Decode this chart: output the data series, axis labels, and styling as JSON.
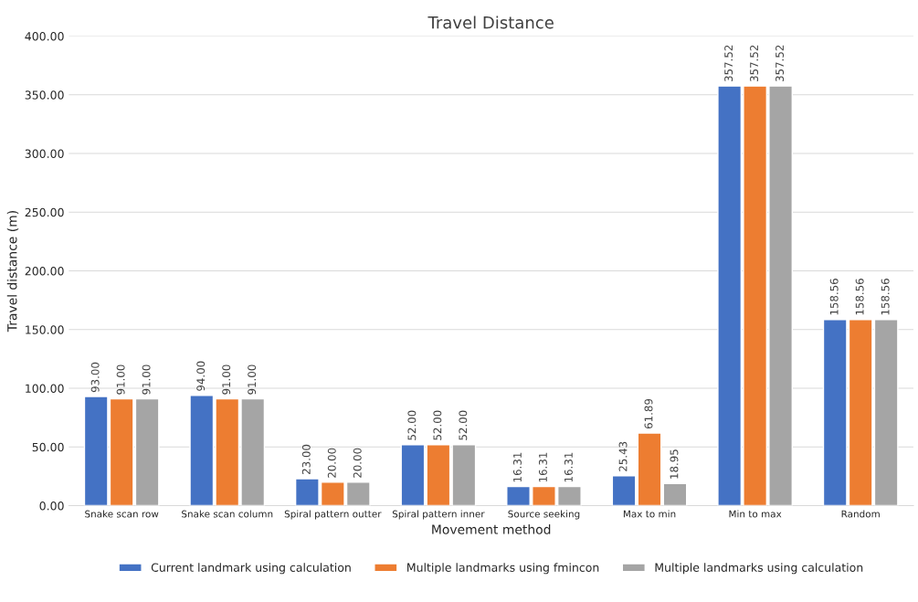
{
  "chart_data": {
    "type": "bar",
    "title": "Travel Distance",
    "xlabel": "Movement method",
    "ylabel": "Travel distance (m)",
    "categories": [
      "Snake scan row",
      "Snake scan column",
      "Spiral pattern outter",
      "Spiral pattern inner",
      "Source seeking",
      "Max to min",
      "Min to max",
      "Random"
    ],
    "series": [
      {
        "name": "Current landmark using calculation",
        "color": "#4472c4",
        "values": [
          93.0,
          94.0,
          23.0,
          52.0,
          16.31,
          25.43,
          357.52,
          158.56
        ],
        "value_labels": [
          "93.00",
          "94.00",
          "23.00",
          "52.00",
          "16.31",
          "25.43",
          "357.52",
          "158.56"
        ]
      },
      {
        "name": "Multiple landmarks using fmincon",
        "color": "#ed7d31",
        "values": [
          91.0,
          91.0,
          20.0,
          52.0,
          16.31,
          61.89,
          357.52,
          158.56
        ],
        "value_labels": [
          "91.00",
          "91.00",
          "20.00",
          "52.00",
          "16.31",
          "61.89",
          "357.52",
          "158.56"
        ]
      },
      {
        "name": "Multiple landmarks using calculation",
        "color": "#a5a5a5",
        "values": [
          91.0,
          91.0,
          20.0,
          52.0,
          16.31,
          18.95,
          357.52,
          158.56
        ],
        "value_labels": [
          "91.00",
          "91.00",
          "20.00",
          "52.00",
          "16.31",
          "18.95",
          "357.52",
          "158.56"
        ]
      }
    ],
    "ylim": [
      0,
      400
    ],
    "yticks": [
      {
        "value": 0,
        "label": "0.00"
      },
      {
        "value": 50,
        "label": "50.00"
      },
      {
        "value": 100,
        "label": "100.00"
      },
      {
        "value": 150,
        "label": "150.00"
      },
      {
        "value": 200,
        "label": "200.00"
      },
      {
        "value": 250,
        "label": "250.00"
      },
      {
        "value": 300,
        "label": "300.00"
      },
      {
        "value": 350,
        "label": "350.00"
      },
      {
        "value": 400,
        "label": "400.00"
      }
    ],
    "grid": "y",
    "legend": "bottom"
  }
}
